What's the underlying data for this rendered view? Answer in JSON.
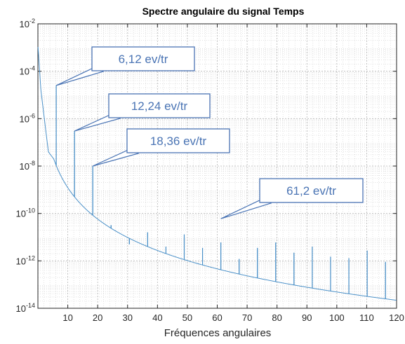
{
  "chart_data": {
    "type": "line",
    "title": "Spectre angulaire du signal Temps",
    "xlabel": "Fréquences angulaires",
    "ylabel": "",
    "xlim": [
      0,
      120
    ],
    "ylim_exponent": [
      -14,
      -2
    ],
    "yscale": "log",
    "grid": true,
    "minor_grid": true,
    "x_ticks": [
      "10",
      "20",
      "30",
      "40",
      "50",
      "60",
      "70",
      "80",
      "90",
      "100",
      "110",
      "120"
    ],
    "y_ticks": [
      {
        "base": "10",
        "exp": "-14"
      },
      {
        "base": "10",
        "exp": "-12"
      },
      {
        "base": "10",
        "exp": "-10"
      },
      {
        "base": "10",
        "exp": "-8"
      },
      {
        "base": "10",
        "exp": "-6"
      },
      {
        "base": "10",
        "exp": "-4"
      },
      {
        "base": "10",
        "exp": "-2"
      }
    ],
    "line_color": "#4a90c8",
    "annotation_color": "#4a74b4",
    "peaks": [
      {
        "x": 6.12,
        "y": 2.5e-05
      },
      {
        "x": 12.24,
        "y": 3e-07
      },
      {
        "x": 18.36,
        "y": 1e-08
      },
      {
        "x": 24.48,
        "y": 3.2e-11
      },
      {
        "x": 30.6,
        "y": 5e-12
      },
      {
        "x": 36.72,
        "y": 1.6e-11
      },
      {
        "x": 42.84,
        "y": 4e-12
      },
      {
        "x": 48.96,
        "y": 1.3e-11
      },
      {
        "x": 55.08,
        "y": 3.5e-12
      },
      {
        "x": 61.2,
        "y": 6e-12
      },
      {
        "x": 67.32,
        "y": 1.2e-12
      },
      {
        "x": 73.44,
        "y": 3.5e-12
      },
      {
        "x": 79.56,
        "y": 6e-12
      },
      {
        "x": 85.68,
        "y": 2.2e-12
      },
      {
        "x": 91.8,
        "y": 4e-12
      },
      {
        "x": 97.92,
        "y": 1.5e-12
      },
      {
        "x": 104.04,
        "y": 1.3e-12
      },
      {
        "x": 110.16,
        "y": 2.7e-12
      },
      {
        "x": 116.28,
        "y": 9e-13
      }
    ],
    "annotations": [
      {
        "label": "6,12 ev/tr",
        "x": 6.12,
        "y": 2.5e-05
      },
      {
        "label": "12,24 ev/tr",
        "x": 12.24,
        "y": 3e-07
      },
      {
        "label": "18,36 ev/tr",
        "x": 18.36,
        "y": 1e-08
      },
      {
        "label": "61,2 ev/tr",
        "x": 61.2,
        "y": 6e-11
      }
    ]
  }
}
